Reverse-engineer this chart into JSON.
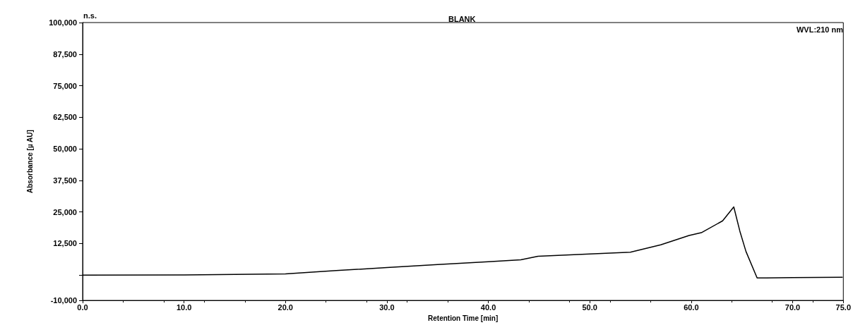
{
  "chart_data": {
    "type": "line",
    "title": "BLANK",
    "xlabel": "Retention Time [min]",
    "ylabel": "Absorbance [µ AU]",
    "annotations": [
      "n.s.",
      "WVL:210 nm"
    ],
    "series": [
      {
        "color": "#000000",
        "x": [
          0,
          10,
          20,
          25,
          30,
          35,
          40,
          43.2,
          44.9,
          50,
          54,
          57,
          59.8,
          61,
          63.1,
          64.2,
          64.8,
          65.4,
          66.5,
          67.4,
          70,
          74.9
        ],
        "values": [
          0,
          100,
          500,
          1800,
          3000,
          4200,
          5300,
          6100,
          7500,
          8400,
          9100,
          12000,
          15700,
          16800,
          21500,
          27000,
          17400,
          9400,
          -1100,
          -1100,
          -1000,
          -800
        ]
      }
    ],
    "xlim": [
      0,
      75
    ],
    "xticks": [
      {
        "value": 0,
        "label": "0.0"
      },
      {
        "value": 10,
        "label": "10.0"
      },
      {
        "value": 20,
        "label": "20.0"
      },
      {
        "value": 30,
        "label": "30.0"
      },
      {
        "value": 40,
        "label": "40.0"
      },
      {
        "value": 50,
        "label": "50.0"
      },
      {
        "value": 60,
        "label": "60.0"
      },
      {
        "value": 70,
        "label": "70.0"
      },
      {
        "value": 75,
        "label": "75.0"
      }
    ],
    "ylim": [
      -10000,
      100000
    ],
    "yticks": [
      {
        "value": -10000,
        "label": "-10,000"
      },
      {
        "value": 0,
        "label": null
      },
      {
        "value": 12500,
        "label": "12,500"
      },
      {
        "value": 25000,
        "label": "25,000"
      },
      {
        "value": 37500,
        "label": "37,500"
      },
      {
        "value": 50000,
        "label": "50,000"
      },
      {
        "value": 62500,
        "label": "62,500"
      },
      {
        "value": 75000,
        "label": "75,000"
      },
      {
        "value": 87500,
        "label": "87,500"
      },
      {
        "value": 100000,
        "label": "100,000"
      }
    ],
    "marker": "none",
    "line_style": "solid"
  }
}
